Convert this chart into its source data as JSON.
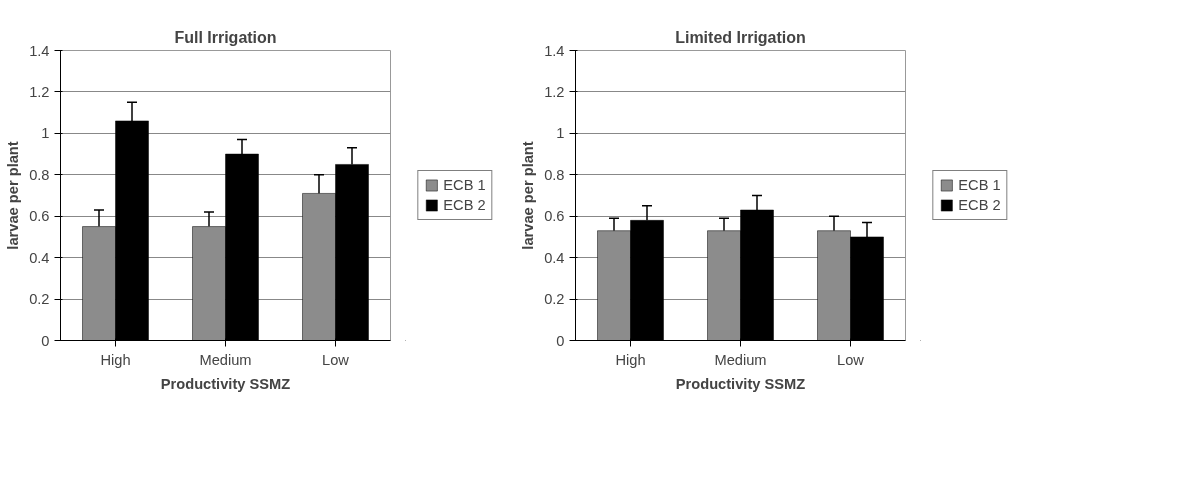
{
  "chart_data": [
    {
      "type": "bar",
      "title": "Full Irrigation",
      "xlabel": "Productivity SSMZ",
      "ylabel": "larvae per plant",
      "categories": [
        "High",
        "Medium",
        "Low"
      ],
      "ylim": [
        0,
        1.4
      ],
      "yticks": [
        0,
        0.2,
        0.4,
        0.6,
        0.8,
        1,
        1.2,
        1.4
      ],
      "grid": "y",
      "legend": "right",
      "series": [
        {
          "name": "ECB 1",
          "color": "#8c8c8c",
          "values": [
            0.55,
            0.55,
            0.71
          ],
          "errors": [
            [
              0.55,
              0.63
            ],
            [
              0.55,
              0.62
            ],
            [
              0.71,
              0.8
            ]
          ]
        },
        {
          "name": "ECB 2",
          "color": "#000000",
          "values": [
            1.06,
            0.9,
            0.85
          ],
          "errors": [
            [
              1.06,
              1.15
            ],
            [
              0.9,
              0.97
            ],
            [
              0.85,
              0.93
            ]
          ]
        }
      ]
    },
    {
      "type": "bar",
      "title": "Limited Irrigation",
      "xlabel": "Productivity SSMZ",
      "ylabel": "larvae per plant",
      "categories": [
        "High",
        "Medium",
        "Low"
      ],
      "ylim": [
        0,
        1.4
      ],
      "yticks": [
        0,
        0.2,
        0.4,
        0.6,
        0.8,
        1,
        1.2,
        1.4
      ],
      "grid": "y",
      "legend": "right",
      "series": [
        {
          "name": "ECB 1",
          "color": "#8c8c8c",
          "values": [
            0.53,
            0.53,
            0.53
          ],
          "errors": [
            [
              0.53,
              0.59
            ],
            [
              0.53,
              0.59
            ],
            [
              0.53,
              0.6
            ]
          ]
        },
        {
          "name": "ECB 2",
          "color": "#000000",
          "values": [
            0.58,
            0.63,
            0.5
          ],
          "errors": [
            [
              0.58,
              0.65
            ],
            [
              0.63,
              0.7
            ],
            [
              0.5,
              0.57
            ]
          ]
        }
      ]
    }
  ]
}
